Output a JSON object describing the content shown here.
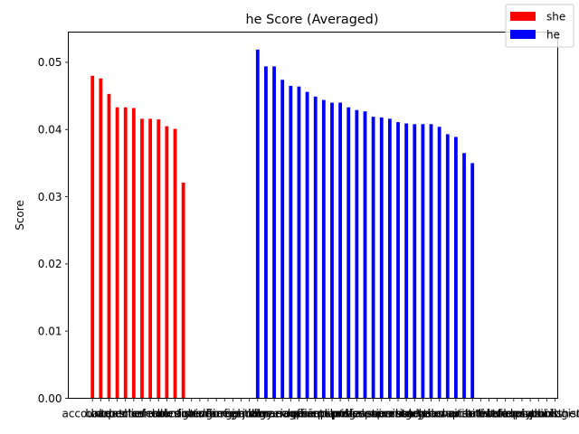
{
  "chart_data": {
    "type": "bar",
    "title": "he Score (Averaged)",
    "xlabel": "",
    "ylabel": "Score",
    "ylim": [
      0,
      0.0545
    ],
    "yticks": [
      0.0,
      0.01,
      0.02,
      0.03,
      0.04,
      0.05
    ],
    "ytick_labels": [
      "0.00",
      "0.01",
      "0.02",
      "0.03",
      "0.04",
      "0.05"
    ],
    "legend_position": "top-right",
    "grid": false,
    "categories": [
      "accountant",
      "baker",
      "barber",
      "carpenter",
      "cashier",
      "chef",
      "cleaner",
      "clerk",
      "cook",
      "dancer",
      "dentist",
      "designer",
      "doctor",
      "driver",
      "editor",
      "engineer",
      "farmer",
      "firefighter",
      "guard",
      "janitor",
      "judge",
      "lawyer",
      "librarian",
      "manager",
      "mechanic",
      "nurse",
      "officer",
      "painter",
      "pharmacist",
      "pilot",
      "plumber",
      "police",
      "professor",
      "programmer",
      "receptionist",
      "salesperson",
      "scientist",
      "secretary",
      "singer",
      "soldier",
      "surgeon",
      "tailor",
      "teacher",
      "therapist",
      "waiter",
      "writer",
      "architect",
      "artist",
      "athlete",
      "banker",
      "builder",
      "chemist",
      "counselor",
      "economist",
      "physicist",
      "psychologist",
      "publisher"
    ],
    "series": [
      {
        "name": "she",
        "color": "#ff0000",
        "values": [
          0.048,
          0.0476,
          0.0453,
          0.0433,
          0.0433,
          0.0432,
          0.0416,
          0.0416,
          0.0415,
          0.0405,
          0.0401,
          0.0321,
          null,
          null,
          null,
          null,
          null,
          null,
          null,
          null,
          null,
          null,
          null,
          null,
          null,
          null,
          null,
          null,
          null,
          null,
          null,
          null,
          null,
          null,
          null,
          null,
          null,
          null,
          null,
          null,
          null,
          null,
          null,
          null,
          null,
          null,
          null,
          null,
          null,
          null,
          null,
          null,
          null,
          null,
          null,
          null,
          null
        ]
      },
      {
        "name": "he",
        "color": "#0000ff",
        "values": [
          null,
          null,
          null,
          null,
          null,
          null,
          null,
          null,
          null,
          null,
          null,
          null,
          null,
          null,
          null,
          null,
          null,
          null,
          null,
          null,
          0.0519,
          0.0494,
          0.0494,
          0.0474,
          0.0465,
          0.0464,
          0.0456,
          0.0449,
          0.0444,
          0.044,
          0.044,
          0.0433,
          0.0429,
          0.0427,
          0.0419,
          0.0418,
          0.0416,
          0.0411,
          0.0409,
          0.0408,
          0.0408,
          0.0408,
          0.0404,
          0.0393,
          0.0389,
          0.0365,
          0.035,
          null,
          null,
          null,
          null,
          null,
          null,
          null,
          null,
          null,
          null
        ]
      }
    ]
  }
}
